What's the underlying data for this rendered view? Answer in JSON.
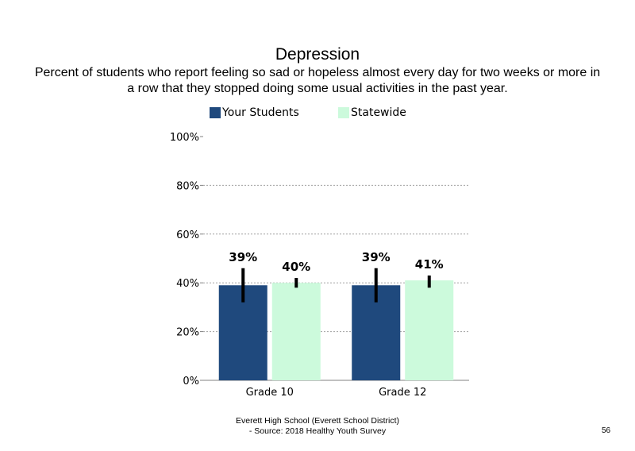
{
  "slide": {
    "title": "Depression",
    "subtitle_line1": "Percent of students who report feeling so sad or hopeless almost every day for two weeks or more in",
    "subtitle_line2": "a row that they stopped doing some usual activities in the past year.",
    "footer_line1": "Everett High School (Everett School District)",
    "footer_line2": "- Source: 2018 Healthy Youth Survey",
    "page_number": "56"
  },
  "legend": {
    "items": [
      {
        "label": "Your Students",
        "color": "#1f497d"
      },
      {
        "label": "Statewide",
        "color": "#ccfadc"
      }
    ]
  },
  "chart_data": {
    "type": "bar",
    "title": "Depression",
    "categories": [
      "Grade 10",
      "Grade 12"
    ],
    "series": [
      {
        "name": "Your Students",
        "color": "#1f497d",
        "values": [
          39,
          39
        ],
        "labels": [
          "39%",
          "39%"
        ],
        "error_low": [
          32,
          32
        ],
        "error_high": [
          46,
          46
        ]
      },
      {
        "name": "Statewide",
        "color": "#ccfadc",
        "values": [
          40,
          41
        ],
        "labels": [
          "40%",
          "41%"
        ],
        "error_low": [
          38,
          38
        ],
        "error_high": [
          42,
          43
        ]
      }
    ],
    "ylim": [
      0,
      100
    ],
    "yticks": [
      0,
      20,
      40,
      60,
      80,
      100
    ],
    "ytick_labels": [
      "0%",
      "20%",
      "40%",
      "60%",
      "80%",
      "100%"
    ],
    "grid": "dotted horizontal",
    "legend_position": "top"
  }
}
